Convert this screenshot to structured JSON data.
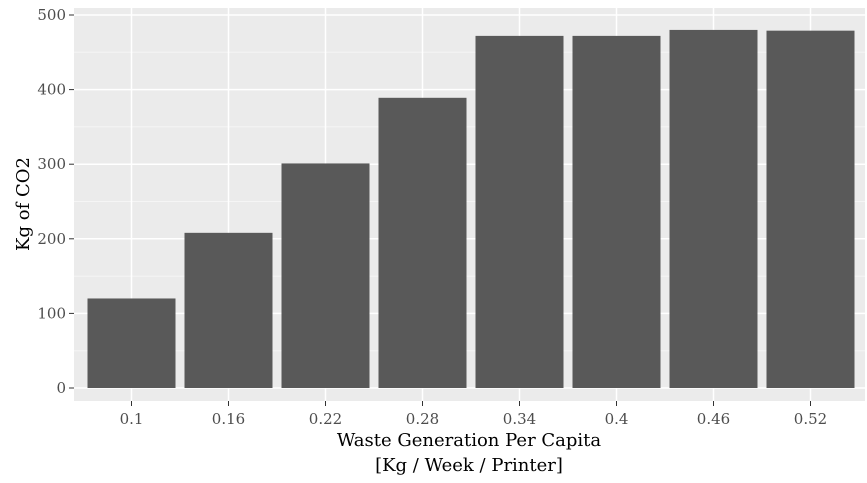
{
  "chart_data": {
    "type": "bar",
    "categories": [
      "0.1",
      "0.16",
      "0.22",
      "0.28",
      "0.34",
      "0.4",
      "0.46",
      "0.52"
    ],
    "values": [
      120,
      208,
      301,
      389,
      472,
      472,
      480,
      479
    ],
    "xlabel_lines": [
      "Waste Generation Per Capita",
      "[Kg / Week / Printer]"
    ],
    "ylabel": "Kg of CO2",
    "ylim": [
      0,
      500
    ],
    "yticks": [
      "0",
      "100",
      "200",
      "300",
      "400",
      "500"
    ],
    "grid": true,
    "colors": {
      "bar": "#595959",
      "panel": "#ebebeb",
      "grid_major": "#ffffff",
      "grid_minor": "#f5f5f5",
      "tick_label": "#4d4d4d",
      "axis_title": "#000000"
    }
  }
}
